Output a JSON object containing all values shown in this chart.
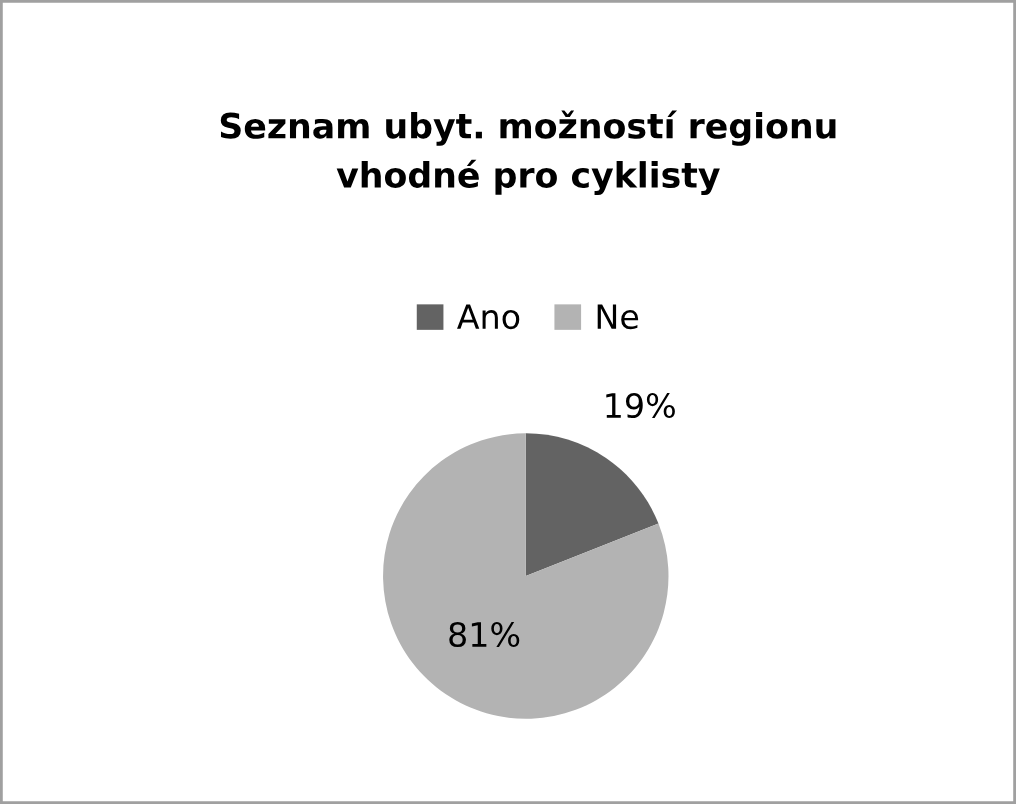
{
  "chart_data": {
    "type": "pie",
    "title": "Seznam ubyt. možností regionu\nvhodné pro cyklisty",
    "categories": [
      "Ano",
      "Ne"
    ],
    "values": [
      19,
      81
    ],
    "colors": [
      "#636363",
      "#b3b3b3"
    ],
    "value_labels": [
      "19%",
      "81%"
    ],
    "legend": "top"
  }
}
